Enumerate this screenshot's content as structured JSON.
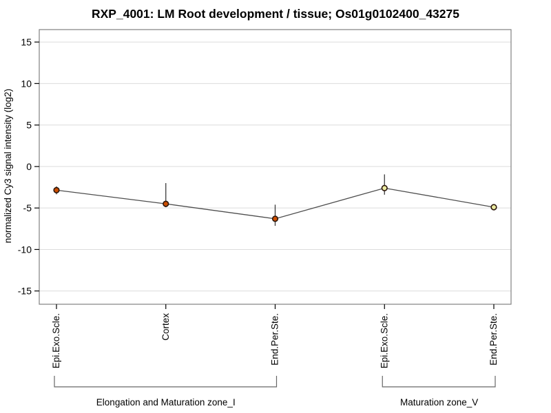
{
  "chart_data": {
    "type": "line",
    "title": "RXP_4001: LM Root development / tissue; Os01g0102400_43275",
    "ylabel": "normalized Cy3 signal intensity (log2)",
    "xlabel": "",
    "ylim": [
      -16.6,
      16.5
    ],
    "yticks": [
      15,
      10,
      5,
      0,
      -5,
      -10,
      -15
    ],
    "grid": true,
    "legend": "none",
    "categories": [
      "Epi.Exo.Scle.",
      "Cortex",
      "End.Per.Ste.",
      "Epi.Exo.Scle.",
      "End.Per.Ste."
    ],
    "values": [
      -2.85,
      -4.5,
      -6.3,
      -2.6,
      -4.9
    ],
    "error_high": [
      -2.4,
      -2.0,
      -4.6,
      -0.95,
      -4.9
    ],
    "error_low": [
      -3.35,
      -4.9,
      -7.15,
      -3.4,
      -4.9
    ],
    "point_fill_colors": [
      "#cc4e00",
      "#cc4e00",
      "#cc4e00",
      "#ebeba0",
      "#ebeba0"
    ],
    "point_edge_color": "#2a150a",
    "line_color": "#4d4d4d",
    "error_bar_color": "#3a3a3a",
    "grid_color": "#dcdcdc",
    "box_color": "#808080",
    "bracket_color": "#666666",
    "text_color": "#000000",
    "groups": [
      {
        "label": "Elongation and Maturation zone_I",
        "from": 0,
        "to": 2
      },
      {
        "label": "Maturation zone_V",
        "from": 3,
        "to": 4
      }
    ]
  }
}
